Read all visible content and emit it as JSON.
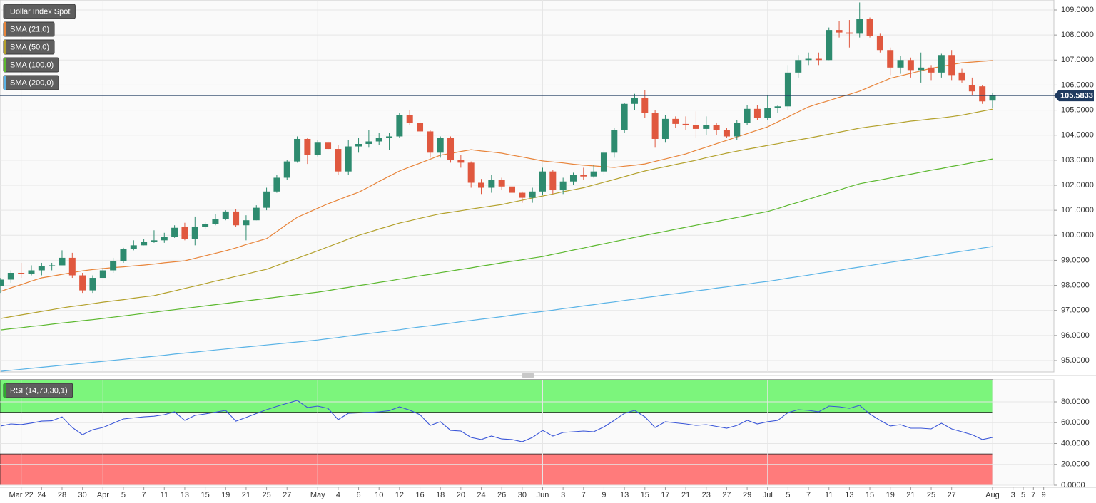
{
  "chart_data": {
    "type": "candlestick",
    "categories": [
      null,
      null,
      "Mar 22",
      null,
      "24",
      null,
      "28",
      null,
      "30",
      null,
      "Apr",
      null,
      "5",
      null,
      "7",
      null,
      "11",
      null,
      "13",
      null,
      "15",
      null,
      "19",
      null,
      "21",
      null,
      "25",
      null,
      "27",
      null,
      null,
      "May",
      null,
      "4",
      null,
      "6",
      null,
      "10",
      null,
      "12",
      null,
      "16",
      null,
      "18",
      null,
      "20",
      null,
      "24",
      null,
      "26",
      null,
      "30",
      null,
      "Jun",
      null,
      "3",
      null,
      "7",
      null,
      "9",
      null,
      "13",
      null,
      "15",
      null,
      "17",
      null,
      "21",
      null,
      "23",
      null,
      "27",
      null,
      "29",
      null,
      "Jul",
      null,
      "5",
      null,
      "7",
      null,
      "11",
      null,
      "13",
      null,
      "15",
      null,
      "19",
      null,
      "21",
      null,
      "25",
      null,
      "27",
      null,
      null,
      null,
      "Aug",
      null,
      "3",
      "5",
      "7",
      "9"
    ],
    "candles": {
      "name": "Dollar Index Spot",
      "color": "#5a5a5a",
      "up_color": "#2e8b6f",
      "down_color": "#e0583f",
      "open": [
        97.97,
        98.23,
        98.5,
        98.45,
        98.6,
        98.78,
        98.8,
        99.1,
        98.4,
        97.8,
        98.3,
        98.6,
        98.96,
        99.45,
        99.6,
        99.75,
        99.8,
        99.95,
        100.35,
        99.85,
        100.35,
        100.45,
        100.65,
        100.95,
        100.4,
        100.6,
        101.1,
        101.75,
        102.3,
        102.95,
        103.85,
        103.2,
        103.7,
        103.45,
        102.55,
        103.55,
        103.65,
        103.75,
        103.9,
        103.95,
        104.8,
        104.5,
        104.15,
        103.3,
        103.9,
        103.0,
        102.9,
        102.1,
        101.9,
        102.2,
        101.95,
        101.7,
        101.5,
        101.75,
        102.55,
        101.8,
        102.15,
        102.4,
        102.35,
        102.55,
        103.3,
        104.2,
        105.25,
        105.5,
        104.9,
        103.85,
        104.65,
        104.45,
        104.4,
        104.25,
        104.4,
        104.2,
        103.95,
        104.5,
        105.05,
        104.7,
        105.1,
        105.15,
        106.5,
        107.0,
        107.05,
        107.0,
        108.2,
        108.1,
        108.05,
        108.65,
        107.95,
        107.4,
        106.7,
        107.0,
        106.6,
        106.7,
        106.5,
        107.2,
        106.5,
        106.0,
        105.95,
        105.38,
        null,
        null,
        null,
        null,
        null
      ],
      "high": [
        98.3,
        98.6,
        98.9,
        98.8,
        98.9,
        98.9,
        99.4,
        99.3,
        98.5,
        98.4,
        98.7,
        99.1,
        99.5,
        99.8,
        99.85,
        100.2,
        100.1,
        100.4,
        100.5,
        100.75,
        100.55,
        100.85,
        101.0,
        101.05,
        100.8,
        101.2,
        101.9,
        102.4,
        103.0,
        103.95,
        103.9,
        103.8,
        103.75,
        103.6,
        103.8,
        103.9,
        104.2,
        104.1,
        104.1,
        104.9,
        105.0,
        104.6,
        104.2,
        103.95,
        103.95,
        103.2,
        102.95,
        102.25,
        102.4,
        102.3,
        102.0,
        101.75,
        101.9,
        102.7,
        102.6,
        102.3,
        102.5,
        102.7,
        102.8,
        103.4,
        104.3,
        105.3,
        105.65,
        105.8,
        105.0,
        104.8,
        104.75,
        104.75,
        104.95,
        104.75,
        104.5,
        104.3,
        104.6,
        105.2,
        105.2,
        105.6,
        105.2,
        106.8,
        107.2,
        107.3,
        107.3,
        108.3,
        108.55,
        108.6,
        109.3,
        108.7,
        108.05,
        107.5,
        107.15,
        107.1,
        107.3,
        106.8,
        107.25,
        107.4,
        106.65,
        106.3,
        106.0,
        105.7,
        null,
        null,
        null,
        null,
        null
      ],
      "low": [
        97.7,
        98.1,
        98.3,
        98.4,
        98.4,
        98.6,
        98.8,
        98.3,
        97.7,
        97.7,
        98.3,
        98.5,
        98.9,
        99.4,
        99.6,
        99.7,
        99.7,
        99.9,
        99.8,
        99.6,
        100.25,
        100.4,
        100.6,
        100.35,
        99.8,
        100.6,
        101.0,
        101.7,
        102.2,
        102.9,
        102.85,
        103.15,
        103.4,
        102.4,
        102.4,
        103.3,
        103.5,
        103.6,
        103.4,
        103.9,
        104.4,
        104.05,
        103.1,
        103.1,
        102.9,
        102.7,
        101.9,
        101.65,
        101.7,
        101.8,
        101.6,
        101.3,
        101.3,
        101.6,
        101.65,
        101.65,
        102.0,
        102.2,
        102.3,
        102.4,
        103.1,
        104.1,
        105.0,
        104.7,
        103.5,
        103.7,
        104.3,
        104.2,
        103.9,
        104.0,
        104.0,
        103.9,
        103.8,
        104.4,
        104.6,
        104.6,
        104.9,
        105.0,
        106.3,
        106.8,
        106.8,
        107.0,
        107.9,
        107.5,
        107.9,
        107.9,
        107.3,
        106.4,
        106.45,
        106.3,
        106.1,
        106.2,
        106.3,
        106.2,
        106.1,
        105.6,
        105.25,
        105.1,
        null,
        null,
        null,
        null,
        null
      ],
      "close": [
        98.23,
        98.5,
        98.45,
        98.6,
        98.78,
        98.8,
        99.1,
        98.4,
        97.8,
        98.3,
        98.6,
        98.96,
        99.45,
        99.6,
        99.75,
        99.8,
        99.95,
        100.3,
        99.85,
        100.35,
        100.45,
        100.65,
        100.95,
        100.4,
        100.6,
        101.1,
        101.75,
        102.3,
        102.95,
        103.85,
        103.2,
        103.7,
        103.45,
        102.55,
        103.55,
        103.65,
        103.75,
        103.9,
        103.95,
        104.8,
        104.5,
        104.15,
        103.3,
        103.9,
        103.0,
        102.9,
        102.1,
        101.9,
        102.2,
        101.95,
        101.7,
        101.5,
        101.75,
        102.55,
        101.8,
        102.15,
        102.4,
        102.35,
        102.55,
        103.3,
        104.2,
        105.25,
        105.5,
        104.9,
        103.85,
        104.65,
        104.45,
        104.4,
        104.25,
        104.4,
        104.2,
        103.95,
        104.5,
        105.05,
        104.7,
        105.1,
        105.15,
        106.5,
        107.0,
        107.05,
        107.0,
        108.2,
        108.1,
        108.05,
        108.65,
        107.95,
        107.4,
        106.7,
        107.0,
        106.6,
        106.7,
        106.5,
        107.2,
        106.4,
        106.2,
        105.75,
        105.35,
        105.5833,
        null,
        null,
        null,
        null,
        null
      ]
    },
    "series": [
      {
        "name": "SMA (21,0)",
        "color": "#e8843a",
        "values": [
          97.76,
          97.9,
          98.03,
          98.17,
          98.3,
          98.37,
          98.44,
          98.51,
          98.58,
          98.63,
          98.67,
          98.71,
          98.74,
          98.78,
          98.81,
          98.85,
          98.9,
          98.94,
          98.98,
          99.08,
          99.18,
          99.28,
          99.38,
          99.5,
          99.63,
          99.75,
          99.87,
          100.15,
          100.44,
          100.72,
          100.9,
          101.08,
          101.26,
          101.41,
          101.57,
          101.72,
          101.93,
          102.15,
          102.36,
          102.57,
          102.73,
          102.88,
          103.04,
          103.2,
          103.27,
          103.35,
          103.42,
          103.37,
          103.33,
          103.28,
          103.2,
          103.13,
          103.05,
          102.97,
          102.93,
          102.89,
          102.84,
          102.8,
          102.77,
          102.74,
          102.71,
          102.76,
          102.8,
          102.85,
          102.95,
          103.05,
          103.15,
          103.25,
          103.39,
          103.52,
          103.66,
          103.79,
          103.93,
          104.06,
          104.2,
          104.33,
          104.53,
          104.73,
          104.93,
          105.13,
          105.26,
          105.38,
          105.51,
          105.63,
          105.76,
          105.93,
          106.1,
          106.27,
          106.37,
          106.47,
          106.57,
          106.67,
          106.74,
          106.82,
          106.89,
          106.92,
          106.95,
          106.98,
          null,
          null,
          null,
          null,
          null
        ]
      },
      {
        "name": "SMA (50,0)",
        "color": "#b3a12c",
        "values": [
          96.68,
          96.75,
          96.82,
          96.89,
          96.96,
          97.03,
          97.1,
          97.16,
          97.21,
          97.27,
          97.33,
          97.38,
          97.43,
          97.49,
          97.54,
          97.59,
          97.69,
          97.78,
          97.88,
          97.97,
          98.07,
          98.17,
          98.26,
          98.36,
          98.45,
          98.55,
          98.64,
          98.79,
          98.94,
          99.08,
          99.23,
          99.38,
          99.54,
          99.69,
          99.85,
          100.0,
          100.12,
          100.25,
          100.37,
          100.49,
          100.58,
          100.68,
          100.77,
          100.86,
          100.92,
          100.98,
          101.05,
          101.11,
          101.17,
          101.23,
          101.32,
          101.4,
          101.49,
          101.57,
          101.65,
          101.74,
          101.82,
          101.9,
          102.01,
          102.12,
          102.23,
          102.34,
          102.46,
          102.57,
          102.66,
          102.74,
          102.83,
          102.91,
          103.0,
          103.1,
          103.19,
          103.28,
          103.36,
          103.44,
          103.51,
          103.59,
          103.66,
          103.74,
          103.81,
          103.88,
          103.96,
          104.04,
          104.12,
          104.2,
          104.28,
          104.34,
          104.39,
          104.45,
          104.5,
          104.56,
          104.6,
          104.65,
          104.69,
          104.74,
          104.8,
          104.88,
          104.96,
          105.04,
          null,
          null,
          null,
          null,
          null
        ]
      },
      {
        "name": "SMA (100,0)",
        "color": "#5cb82f",
        "values": [
          96.22,
          96.27,
          96.31,
          96.36,
          96.4,
          96.45,
          96.5,
          96.54,
          96.59,
          96.63,
          96.68,
          96.73,
          96.78,
          96.83,
          96.88,
          96.93,
          96.98,
          97.03,
          97.08,
          97.13,
          97.18,
          97.23,
          97.28,
          97.33,
          97.38,
          97.43,
          97.48,
          97.53,
          97.58,
          97.63,
          97.68,
          97.73,
          97.79,
          97.86,
          97.92,
          97.99,
          98.05,
          98.12,
          98.18,
          98.25,
          98.31,
          98.38,
          98.44,
          98.51,
          98.57,
          98.64,
          98.7,
          98.77,
          98.83,
          98.9,
          98.96,
          99.02,
          99.09,
          99.15,
          99.24,
          99.32,
          99.41,
          99.49,
          99.58,
          99.66,
          99.75,
          99.83,
          99.92,
          100.0,
          100.08,
          100.16,
          100.24,
          100.32,
          100.4,
          100.48,
          100.55,
          100.63,
          100.71,
          100.79,
          100.87,
          100.95,
          101.07,
          101.2,
          101.32,
          101.44,
          101.57,
          101.69,
          101.81,
          101.94,
          102.06,
          102.14,
          102.21,
          102.29,
          102.37,
          102.44,
          102.52,
          102.6,
          102.67,
          102.75,
          102.82,
          102.9,
          102.97,
          103.05,
          null,
          null,
          null,
          null,
          null
        ]
      },
      {
        "name": "SMA (200,0)",
        "color": "#5ab3e6",
        "values": [
          94.57,
          94.61,
          94.65,
          94.69,
          94.73,
          94.77,
          94.81,
          94.85,
          94.89,
          94.93,
          94.97,
          95.01,
          95.05,
          95.09,
          95.13,
          95.17,
          95.21,
          95.26,
          95.3,
          95.34,
          95.38,
          95.42,
          95.46,
          95.5,
          95.54,
          95.58,
          95.62,
          95.66,
          95.7,
          95.74,
          95.78,
          95.82,
          95.87,
          95.92,
          95.98,
          96.03,
          96.08,
          96.13,
          96.18,
          96.23,
          96.29,
          96.34,
          96.39,
          96.44,
          96.49,
          96.55,
          96.6,
          96.65,
          96.7,
          96.75,
          96.81,
          96.86,
          96.91,
          96.96,
          97.01,
          97.07,
          97.12,
          97.18,
          97.23,
          97.29,
          97.34,
          97.4,
          97.45,
          97.51,
          97.56,
          97.62,
          97.67,
          97.72,
          97.78,
          97.83,
          97.89,
          97.94,
          98.0,
          98.05,
          98.11,
          98.16,
          98.22,
          98.29,
          98.35,
          98.41,
          98.48,
          98.54,
          98.6,
          98.67,
          98.73,
          98.79,
          98.86,
          98.92,
          98.98,
          99.04,
          99.11,
          99.17,
          99.23,
          99.3,
          99.36,
          99.42,
          99.49,
          99.55,
          null,
          null,
          null,
          null,
          null
        ]
      }
    ],
    "last_price": {
      "value": 105.5833,
      "label": "105.5833",
      "color": "#1f3a5f"
    },
    "ylim": [
      94.545,
      109.398
    ],
    "yticks": [
      {
        "value": 95,
        "label": "95.0000"
      },
      {
        "value": 96,
        "label": "96.0000"
      },
      {
        "value": 97,
        "label": "97.0000"
      },
      {
        "value": 98,
        "label": "98.0000"
      },
      {
        "value": 99,
        "label": "99.0000"
      },
      {
        "value": 100,
        "label": "100.0000"
      },
      {
        "value": 101,
        "label": "101.0000"
      },
      {
        "value": 102,
        "label": "102.0000"
      },
      {
        "value": 103,
        "label": "103.0000"
      },
      {
        "value": 104,
        "label": "104.0000"
      },
      {
        "value": 105,
        "label": "105.0000"
      },
      {
        "value": 106,
        "label": "106.0000"
      },
      {
        "value": 107,
        "label": "107.0000"
      },
      {
        "value": 108,
        "label": "108.0000"
      },
      {
        "value": 109,
        "label": "109.0000"
      }
    ],
    "grid": true,
    "indicator": {
      "name": "RSI (14,70,30,1)",
      "color": "#3a56d8",
      "upper": 70,
      "lower": 30,
      "upper_color": "#7cf57c",
      "lower_color": "#ff7b7b",
      "values": [
        56.8,
        58.8,
        58.2,
        59.6,
        61.5,
        61.8,
        65.6,
        55.4,
        48.5,
        53.3,
        55.4,
        59.5,
        63.6,
        64.6,
        65.6,
        66.2,
        67.7,
        70.4,
        62.2,
        67.0,
        68.4,
        70.0,
        71.8,
        61.5,
        65.0,
        68.8,
        72.5,
        75.6,
        78.6,
        81.4,
        74.5,
        75.9,
        73.8,
        62.9,
        69.0,
        69.4,
        69.9,
        70.4,
        71.5,
        75.2,
        72.0,
        67.7,
        57.4,
        60.9,
        52.6,
        52.0,
        45.8,
        43.8,
        47.2,
        44.4,
        43.8,
        41.7,
        45.8,
        52.6,
        47.2,
        50.6,
        51.3,
        52.0,
        51.3,
        56.0,
        62.2,
        69.0,
        71.8,
        65.6,
        55.4,
        60.9,
        59.8,
        58.8,
        57.4,
        58.1,
        56.4,
        54.7,
        57.4,
        62.2,
        58.8,
        60.9,
        62.2,
        69.7,
        72.5,
        71.8,
        70.4,
        75.9,
        75.2,
        73.8,
        76.6,
        68.4,
        62.2,
        56.8,
        58.1,
        54.7,
        54.7,
        54.0,
        59.5,
        54.0,
        51.3,
        48.5,
        43.8,
        45.8,
        null,
        null,
        null,
        null,
        null
      ],
      "ylim": [
        0,
        101.2
      ],
      "yticks": [
        {
          "value": 0,
          "label": "0.0000"
        },
        {
          "value": 20,
          "label": "20.0000"
        },
        {
          "value": 40,
          "label": "40.0000"
        },
        {
          "value": 60,
          "label": "60.0000"
        },
        {
          "value": 80,
          "label": "80.0000"
        }
      ]
    }
  }
}
